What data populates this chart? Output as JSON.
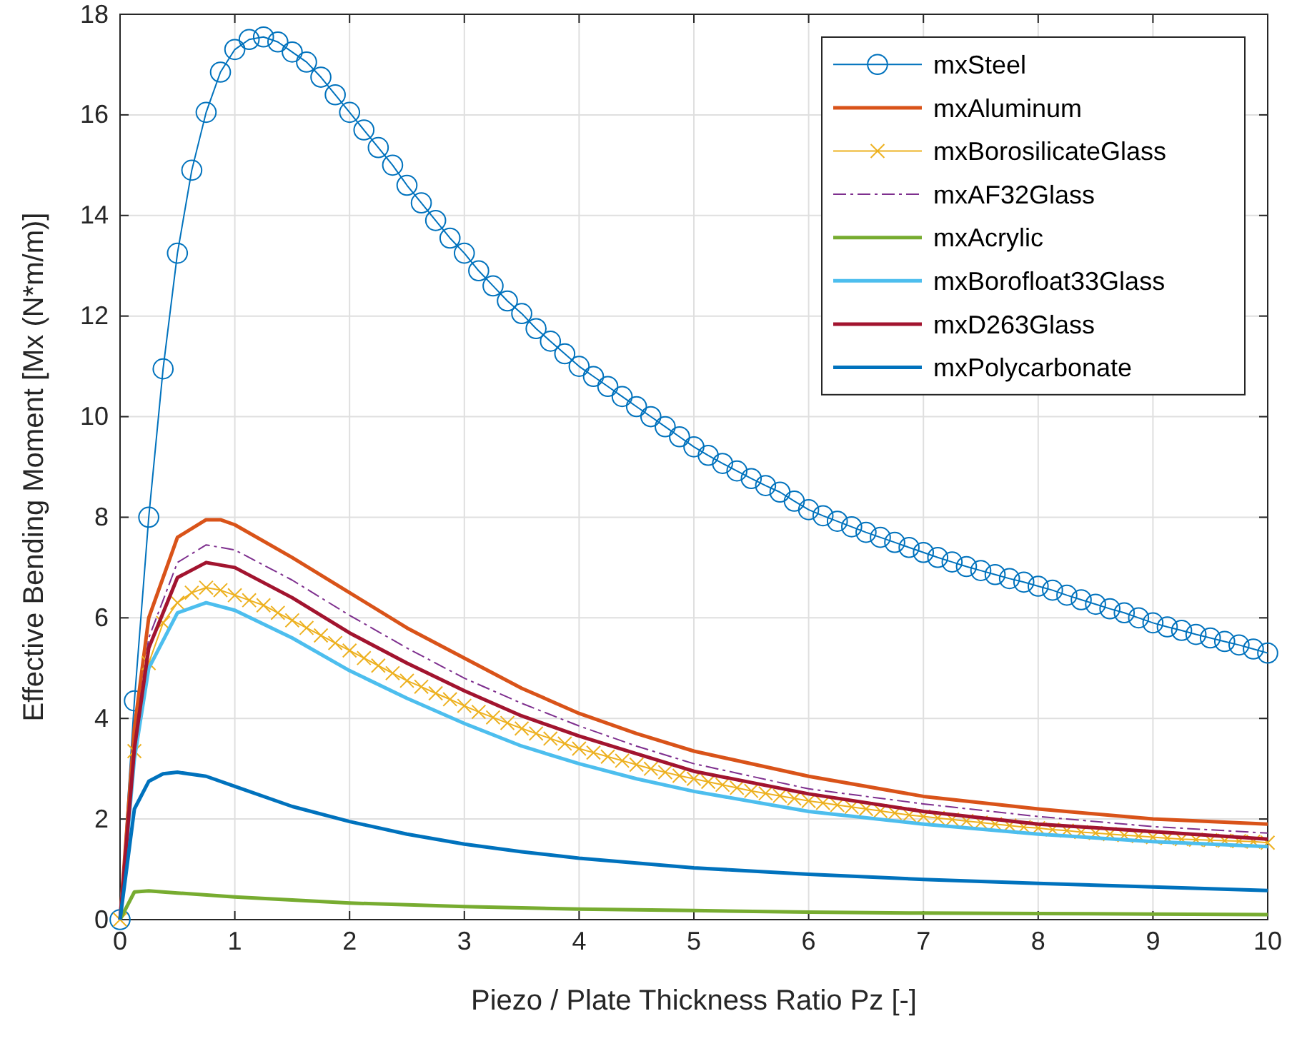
{
  "chart_data": {
    "type": "line",
    "xlabel": "Piezo / Plate Thickness Ratio Pz [-]",
    "ylabel": "Effective Bending Moment [Mx (N*m/m)]",
    "xlim": [
      0,
      10
    ],
    "ylim": [
      0,
      18
    ],
    "xticks": [
      0,
      1,
      2,
      3,
      4,
      5,
      6,
      7,
      8,
      9,
      10
    ],
    "yticks": [
      0,
      2,
      4,
      6,
      8,
      10,
      12,
      14,
      16,
      18
    ],
    "grid": true,
    "legend": "top right",
    "series": [
      {
        "name": "mxSteel",
        "color": "#0072bd",
        "marker": "circle",
        "x": [
          0,
          0.125,
          0.25,
          0.375,
          0.5,
          0.625,
          0.75,
          0.875,
          1,
          1.125,
          1.25,
          1.375,
          1.5,
          1.625,
          1.75,
          1.875,
          2,
          2.125,
          2.25,
          2.375,
          2.5,
          2.625,
          2.75,
          2.875,
          3,
          3.125,
          3.25,
          3.375,
          3.5,
          3.625,
          3.75,
          3.875,
          4,
          4.125,
          4.25,
          4.375,
          4.5,
          4.625,
          4.75,
          4.875,
          5,
          5.125,
          5.25,
          5.375,
          5.5,
          5.625,
          5.75,
          5.875,
          6,
          6.125,
          6.25,
          6.375,
          6.5,
          6.625,
          6.75,
          6.875,
          7,
          7.125,
          7.25,
          7.375,
          7.5,
          7.625,
          7.75,
          7.875,
          8,
          8.125,
          8.25,
          8.375,
          8.5,
          8.625,
          8.75,
          8.875,
          9,
          9.125,
          9.25,
          9.375,
          9.5,
          9.625,
          9.75,
          9.875,
          10
        ],
        "values": [
          0,
          4.35,
          8.0,
          10.95,
          13.25,
          14.9,
          16.05,
          16.85,
          17.3,
          17.5,
          17.55,
          17.45,
          17.25,
          17.05,
          16.75,
          16.4,
          16.05,
          15.7,
          15.35,
          15.0,
          14.6,
          14.25,
          13.9,
          13.55,
          13.25,
          12.9,
          12.6,
          12.3,
          12.05,
          11.75,
          11.5,
          11.25,
          11.0,
          10.8,
          10.6,
          10.4,
          10.2,
          10.0,
          9.8,
          9.6,
          9.4,
          9.23,
          9.07,
          8.92,
          8.77,
          8.63,
          8.5,
          8.32,
          8.15,
          8.03,
          7.92,
          7.81,
          7.7,
          7.6,
          7.5,
          7.4,
          7.3,
          7.2,
          7.11,
          7.02,
          6.94,
          6.86,
          6.78,
          6.71,
          6.63,
          6.55,
          6.45,
          6.36,
          6.27,
          6.18,
          6.1,
          6.0,
          5.9,
          5.82,
          5.75,
          5.67,
          5.6,
          5.53,
          5.46,
          5.38,
          5.3
        ]
      },
      {
        "name": "mxAluminum",
        "color": "#d95319",
        "x": [
          0,
          0.125,
          0.25,
          0.5,
          0.75,
          0.875,
          1,
          1.5,
          2,
          2.5,
          3,
          3.5,
          4,
          4.5,
          5,
          6,
          7,
          8,
          9,
          10
        ],
        "values": [
          0,
          3.8,
          6.0,
          7.6,
          7.95,
          7.95,
          7.85,
          7.2,
          6.5,
          5.8,
          5.2,
          4.6,
          4.1,
          3.7,
          3.35,
          2.85,
          2.45,
          2.2,
          2.0,
          1.9
        ]
      },
      {
        "name": "mxBorosilicateGlass",
        "color": "#edb120",
        "marker": "cross",
        "x": [
          0,
          0.125,
          0.25,
          0.375,
          0.5,
          0.625,
          0.75,
          0.875,
          1,
          1.125,
          1.25,
          1.375,
          1.5,
          1.625,
          1.75,
          1.875,
          2,
          2.125,
          2.25,
          2.375,
          2.5,
          2.625,
          2.75,
          2.875,
          3,
          3.125,
          3.25,
          3.375,
          3.5,
          3.625,
          3.75,
          3.875,
          4,
          4.125,
          4.25,
          4.375,
          4.5,
          4.625,
          4.75,
          4.875,
          5,
          5.125,
          5.25,
          5.375,
          5.5,
          5.625,
          5.75,
          5.875,
          6,
          6.125,
          6.25,
          6.375,
          6.5,
          6.625,
          6.75,
          6.875,
          7,
          7.125,
          7.25,
          7.375,
          7.5,
          7.625,
          7.75,
          7.875,
          8,
          8.125,
          8.25,
          8.375,
          8.5,
          8.625,
          8.75,
          8.875,
          9,
          9.125,
          9.25,
          9.375,
          9.5,
          9.625,
          9.75,
          9.875,
          10
        ],
        "values": [
          0,
          3.35,
          5.1,
          5.9,
          6.3,
          6.5,
          6.6,
          6.55,
          6.45,
          6.35,
          6.25,
          6.1,
          5.95,
          5.8,
          5.65,
          5.5,
          5.35,
          5.2,
          5.05,
          4.9,
          4.75,
          4.63,
          4.5,
          4.38,
          4.25,
          4.13,
          4.02,
          3.91,
          3.8,
          3.7,
          3.6,
          3.5,
          3.4,
          3.32,
          3.24,
          3.16,
          3.08,
          3.0,
          2.93,
          2.86,
          2.8,
          2.74,
          2.68,
          2.62,
          2.56,
          2.51,
          2.46,
          2.41,
          2.36,
          2.32,
          2.28,
          2.24,
          2.2,
          2.16,
          2.12,
          2.08,
          2.05,
          2.02,
          1.99,
          1.96,
          1.93,
          1.9,
          1.87,
          1.84,
          1.82,
          1.79,
          1.77,
          1.74,
          1.72,
          1.7,
          1.68,
          1.66,
          1.64,
          1.62,
          1.6,
          1.59,
          1.58,
          1.57,
          1.56,
          1.55,
          1.53
        ]
      },
      {
        "name": "mxAF32Glass",
        "color": "#7e2f8e",
        "line_style": "dashed",
        "x": [
          0,
          0.125,
          0.25,
          0.5,
          0.75,
          1,
          1.5,
          2,
          2.5,
          3,
          3.5,
          4,
          4.5,
          5,
          6,
          7,
          8,
          9,
          10
        ],
        "values": [
          0,
          3.5,
          5.6,
          7.1,
          7.45,
          7.35,
          6.75,
          6.05,
          5.4,
          4.8,
          4.3,
          3.85,
          3.45,
          3.1,
          2.6,
          2.3,
          2.05,
          1.85,
          1.72
        ]
      },
      {
        "name": "mxAcrylic",
        "color": "#77ac30",
        "x": [
          0,
          0.125,
          0.25,
          0.5,
          1,
          2,
          3,
          4,
          5,
          6,
          7,
          8,
          9,
          10
        ],
        "values": [
          0,
          0.55,
          0.57,
          0.53,
          0.45,
          0.33,
          0.26,
          0.21,
          0.18,
          0.15,
          0.13,
          0.12,
          0.11,
          0.1
        ]
      },
      {
        "name": "mxBorofloat33Glass",
        "color": "#4dbeee",
        "x": [
          0,
          0.125,
          0.25,
          0.5,
          0.75,
          1,
          1.5,
          2,
          2.5,
          3,
          3.5,
          4,
          4.5,
          5,
          6,
          7,
          8,
          9,
          10
        ],
        "values": [
          0,
          3.2,
          5.0,
          6.1,
          6.3,
          6.15,
          5.6,
          4.95,
          4.4,
          3.9,
          3.45,
          3.1,
          2.8,
          2.55,
          2.15,
          1.9,
          1.7,
          1.55,
          1.45
        ]
      },
      {
        "name": "mxD263Glass",
        "color": "#a2142f",
        "x": [
          0,
          0.125,
          0.25,
          0.5,
          0.75,
          1,
          1.5,
          2,
          2.5,
          3,
          3.5,
          4,
          4.5,
          5,
          6,
          7,
          8,
          9,
          10
        ],
        "values": [
          0,
          3.4,
          5.4,
          6.8,
          7.1,
          7.0,
          6.4,
          5.7,
          5.1,
          4.55,
          4.05,
          3.65,
          3.3,
          2.95,
          2.5,
          2.15,
          1.9,
          1.75,
          1.6
        ]
      },
      {
        "name": "mxPolycarbonate",
        "color": "#0072bd",
        "x": [
          0,
          0.125,
          0.25,
          0.375,
          0.5,
          0.75,
          1,
          1.5,
          2,
          2.5,
          3,
          3.5,
          4,
          5,
          6,
          7,
          8,
          9,
          10
        ],
        "values": [
          0,
          2.2,
          2.75,
          2.9,
          2.93,
          2.85,
          2.65,
          2.25,
          1.95,
          1.7,
          1.5,
          1.35,
          1.22,
          1.03,
          0.9,
          0.8,
          0.72,
          0.65,
          0.58
        ]
      }
    ]
  }
}
